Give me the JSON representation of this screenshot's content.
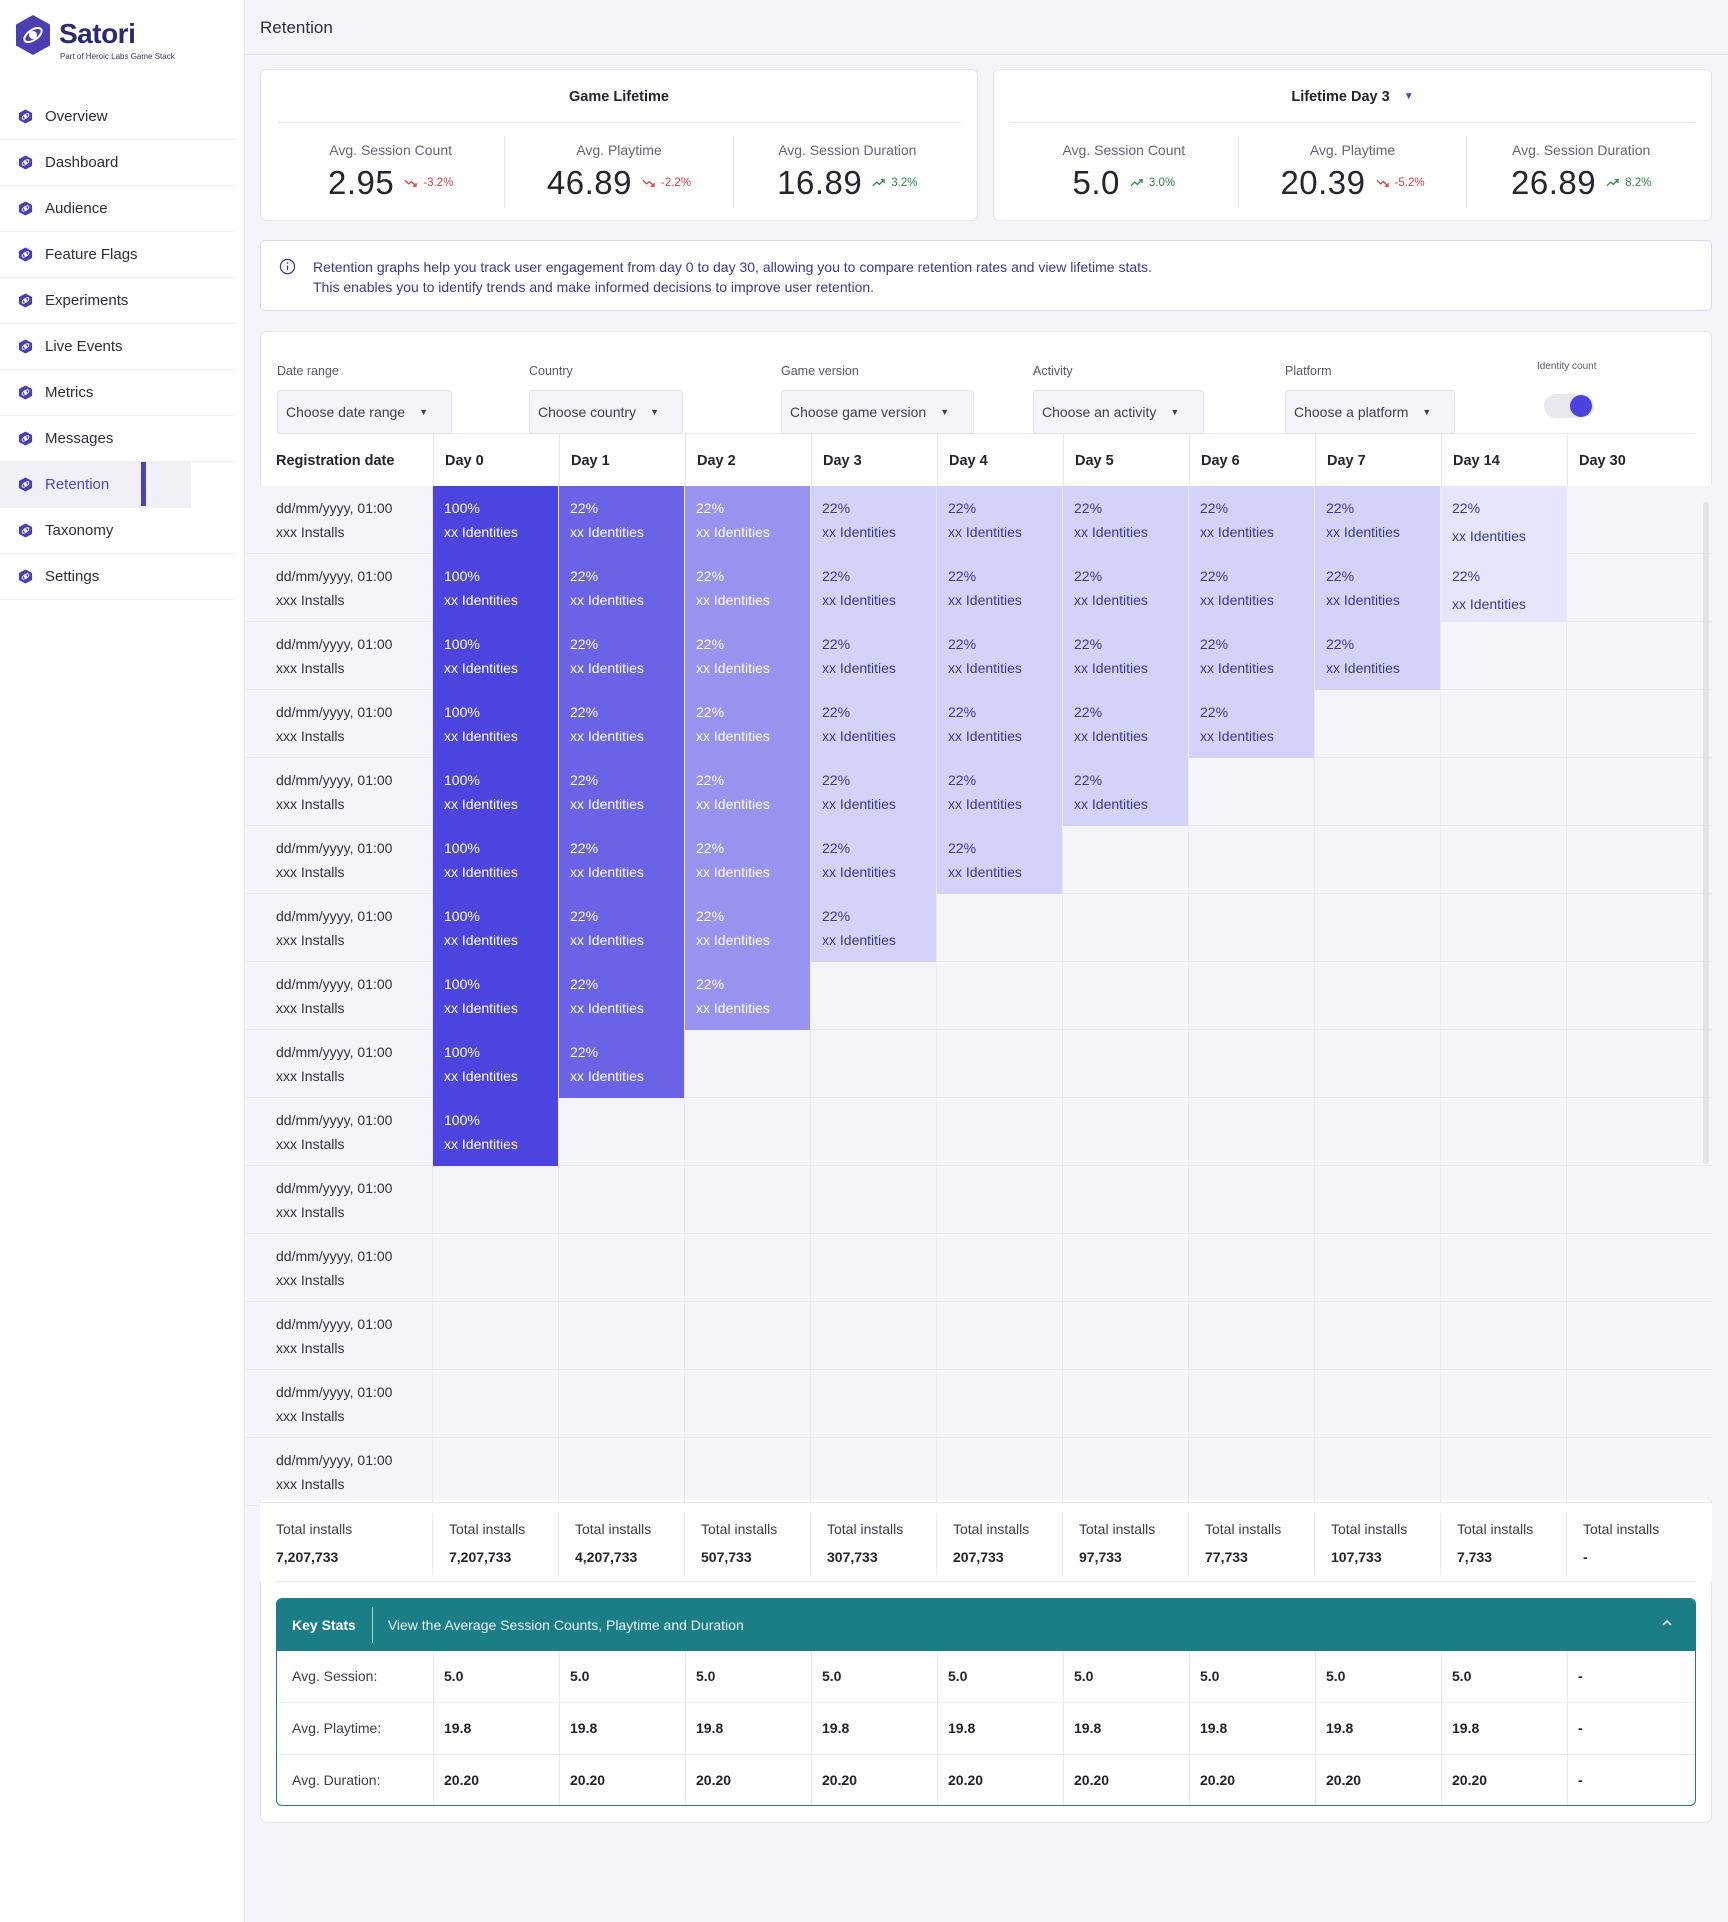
{
  "app": {
    "brand": "Satori",
    "brand_sub": "Part of Heroic Labs Game Stack",
    "page_title": "Retention"
  },
  "sidebar": {
    "active": "Retention",
    "items": [
      {
        "label": "Overview",
        "icon": "hex-logo-icon"
      },
      {
        "label": "Dashboard",
        "icon": "hex-logo-icon"
      },
      {
        "label": "Audience",
        "icon": "hex-logo-icon"
      },
      {
        "label": "Feature Flags",
        "icon": "hex-logo-icon"
      },
      {
        "label": "Experiments",
        "icon": "hex-logo-icon"
      },
      {
        "label": "Live Events",
        "icon": "hex-logo-icon"
      },
      {
        "label": "Metrics",
        "icon": "hex-logo-icon"
      },
      {
        "label": "Messages",
        "icon": "hex-logo-icon"
      },
      {
        "label": "Retention",
        "icon": "hex-logo-icon"
      },
      {
        "label": "Taxonomy",
        "icon": "hex-logo-icon"
      },
      {
        "label": "Settings",
        "icon": "hex-logo-icon"
      }
    ]
  },
  "stats": {
    "lifetime": {
      "title": "Game Lifetime",
      "metrics": [
        {
          "label": "Avg. Session Count",
          "value": "2.95",
          "delta": "-3.2%",
          "direction": "down"
        },
        {
          "label": "Avg. Playtime",
          "value": "46.89",
          "delta": "-2.2%",
          "direction": "down"
        },
        {
          "label": "Avg. Session Duration",
          "value": "16.89",
          "delta": "3.2%",
          "direction": "up"
        }
      ]
    },
    "day3": {
      "title": "Lifetime Day 3",
      "metrics": [
        {
          "label": "Avg. Session Count",
          "value": "5.0",
          "delta": "3.0%",
          "direction": "up"
        },
        {
          "label": "Avg. Playtime",
          "value": "20.39",
          "delta": "-5.2%",
          "direction": "down"
        },
        {
          "label": "Avg. Session Duration",
          "value": "26.89",
          "delta": "8.2%",
          "direction": "up"
        }
      ]
    }
  },
  "info": {
    "line1": "Retention graphs help you track user engagement from day 0 to day 30, allowing you to compare retention rates and view lifetime stats.",
    "line2": "This enables you to identify trends and make informed decisions to improve user retention."
  },
  "filters": {
    "date_range": {
      "label": "Date range",
      "value": "Choose date range"
    },
    "country": {
      "label": "Country",
      "value": "Choose country"
    },
    "game_version": {
      "label": "Game version",
      "value": "Choose game version"
    },
    "activity": {
      "label": "Activity",
      "value": "Choose an activity"
    },
    "platform": {
      "label": "Platform",
      "value": "Choose a platform"
    },
    "identity_count": {
      "label": "Identity count",
      "on": true
    }
  },
  "table": {
    "first_header": "Registration date",
    "days": [
      "Day 0",
      "Day 1",
      "Day 2",
      "Day 3",
      "Day 4",
      "Day 5",
      "Day 6",
      "Day 7",
      "Day 14",
      "Day 30"
    ],
    "row_date": "dd/mm/yyyy, 01:00",
    "row_installs": "xxx Installs",
    "cell_pct_day0": "100%",
    "cell_pct": "22%",
    "cell_identities": "xx Identities",
    "filled_counts": [
      9,
      9,
      8,
      7,
      6,
      5,
      4,
      3,
      2,
      1,
      0,
      0,
      0,
      0,
      0
    ],
    "colors": {
      "day0": "#4c44df",
      "day1": "#6a63e6",
      "day2": "#9893ef",
      "later": "#d3d2f8",
      "day14": "#e5e6fb"
    }
  },
  "totals": {
    "label": "Total installs",
    "first_value": "7,207,733",
    "values": [
      "7,207,733",
      "4,207,733",
      "507,733",
      "307,733",
      "207,733",
      "97,733",
      "77,733",
      "107,733",
      "7,733",
      "-"
    ]
  },
  "key_stats": {
    "title": "Key Stats",
    "description": "View the Average Session Counts, Playtime and Duration",
    "rows": [
      {
        "label": "Avg. Session:",
        "values": [
          "5.0",
          "5.0",
          "5.0",
          "5.0",
          "5.0",
          "5.0",
          "5.0",
          "5.0",
          "5.0",
          "-"
        ]
      },
      {
        "label": "Avg. Playtime:",
        "values": [
          "19.8",
          "19.8",
          "19.8",
          "19.8",
          "19.8",
          "19.8",
          "19.8",
          "19.8",
          "19.8",
          "-"
        ]
      },
      {
        "label": "Avg. Duration:",
        "values": [
          "20.20",
          "20.20",
          "20.20",
          "20.20",
          "20.20",
          "20.20",
          "20.20",
          "20.20",
          "20.20",
          "-"
        ]
      }
    ]
  }
}
